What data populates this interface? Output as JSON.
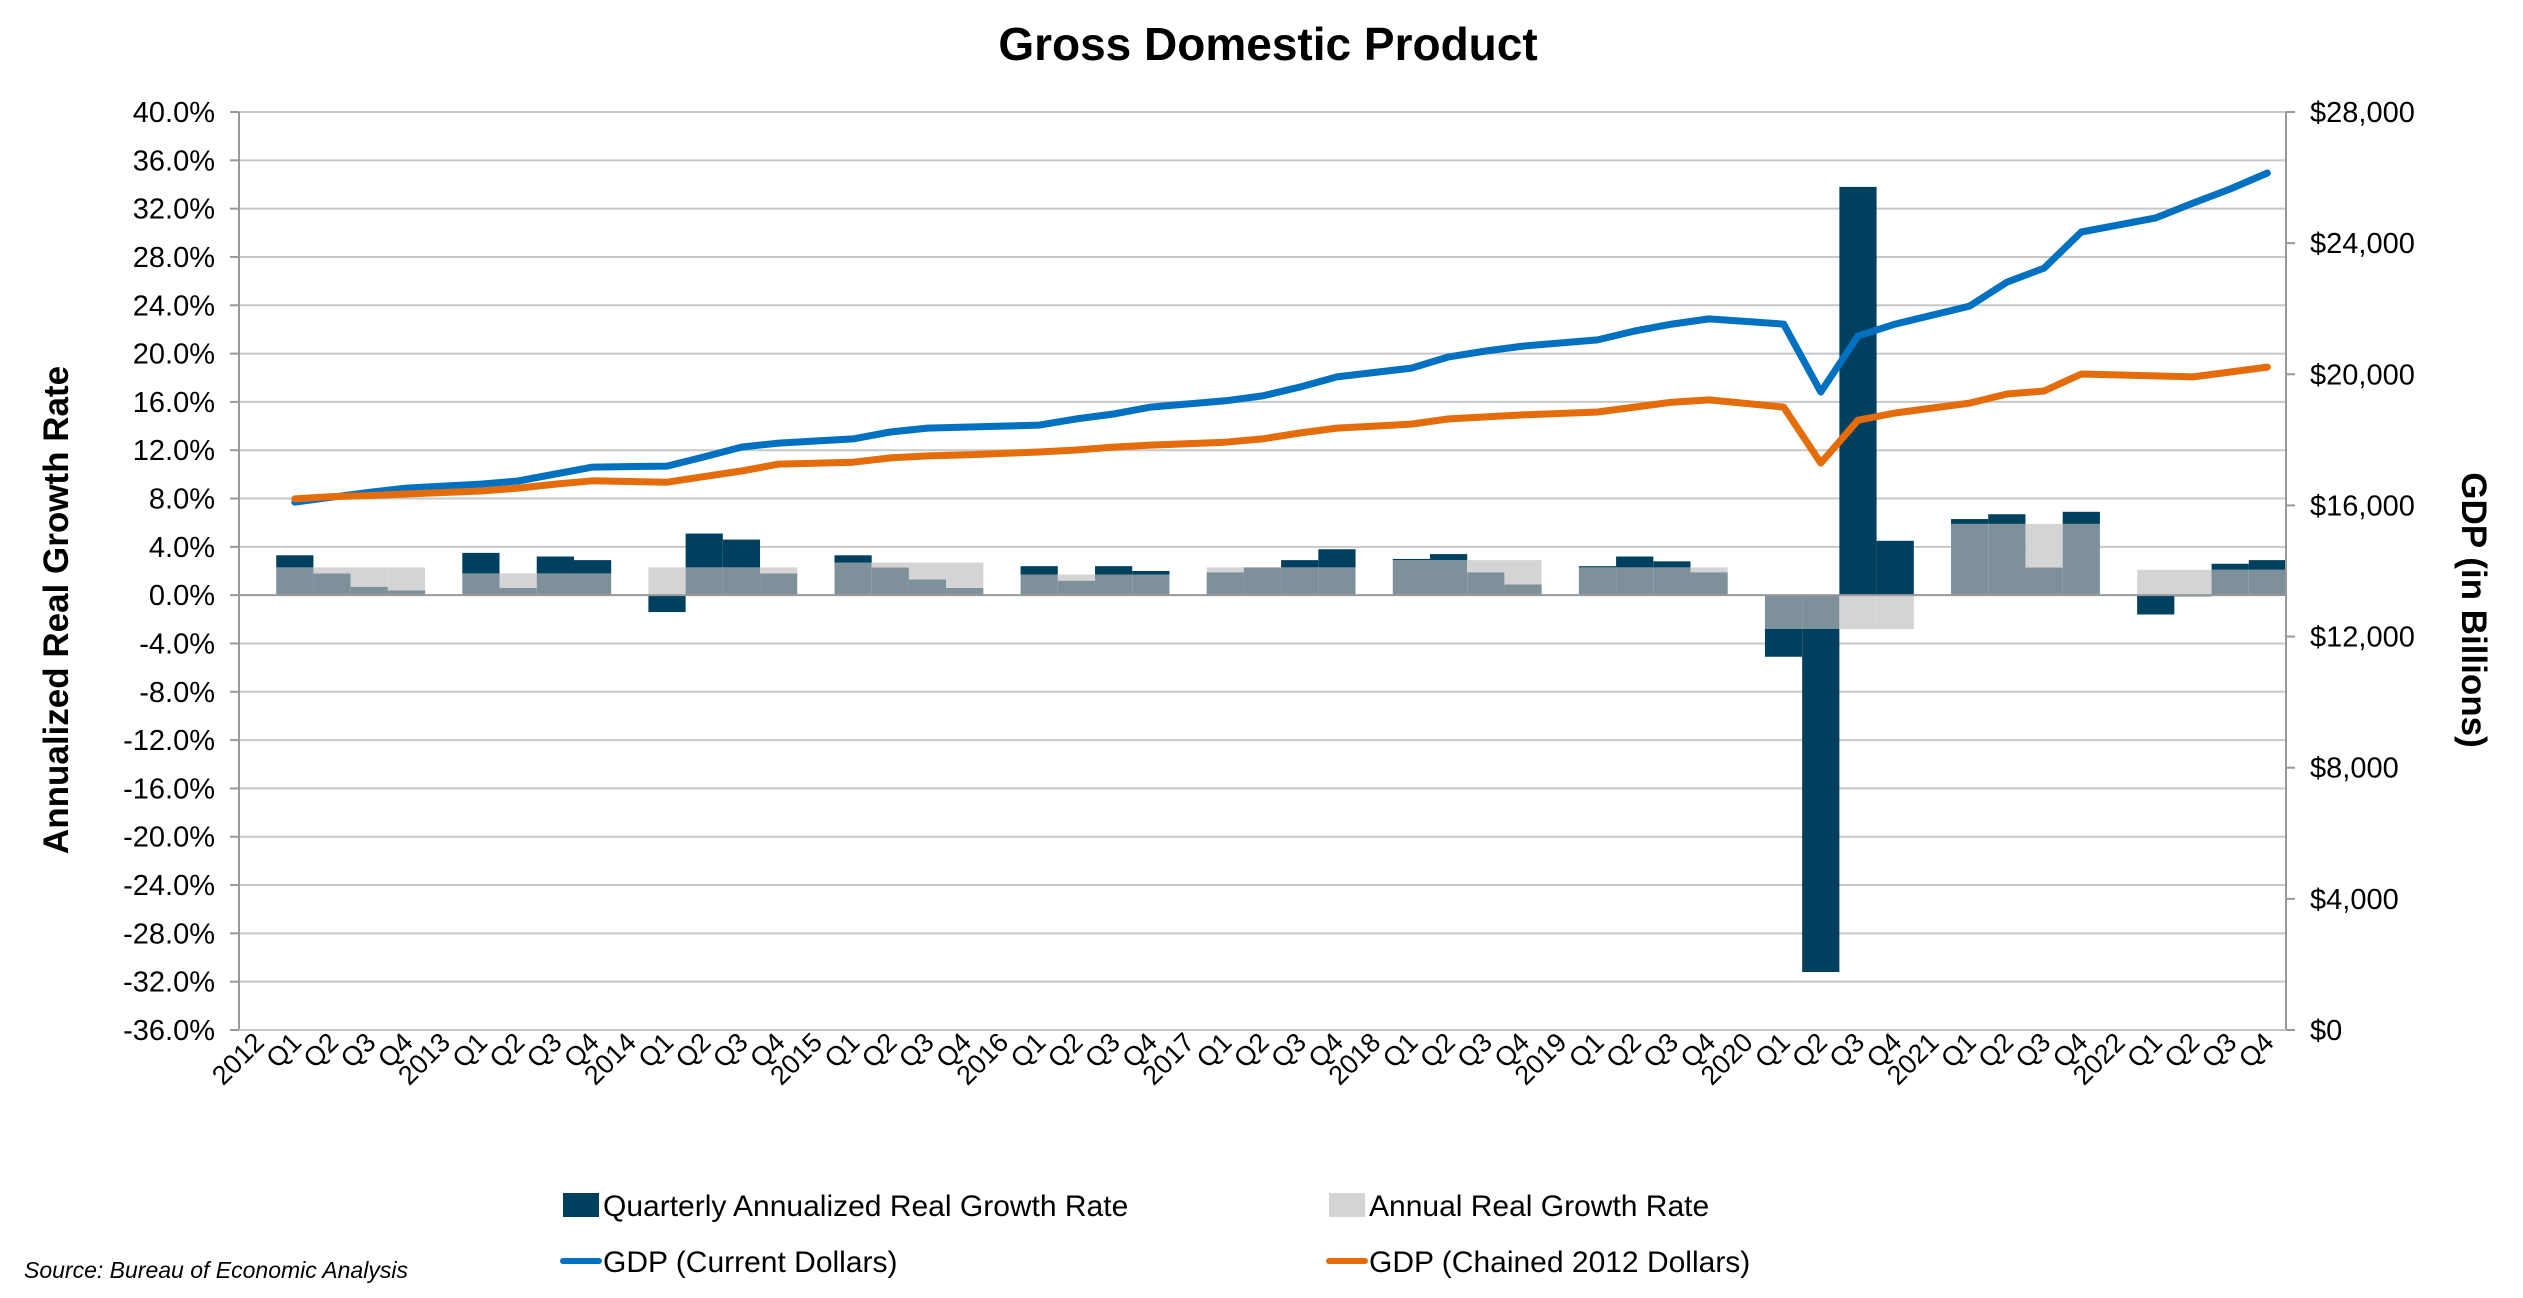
{
  "chart_data": {
    "type": "bar",
    "title": "Gross Domestic Product",
    "source": "Source: Bureau of Economic Analysis",
    "ylabel_left": "Annualized Real Growth Rate",
    "ylabel_right": "GDP (in Billions)",
    "xlabel": "",
    "grid": true,
    "legend_position": "bottom",
    "y_left": {
      "min": -36,
      "max": 40,
      "step": 4,
      "format": "percent_1dp",
      "ticks": [
        "40.0%",
        "36.0%",
        "32.0%",
        "28.0%",
        "24.0%",
        "20.0%",
        "16.0%",
        "12.0%",
        "8.0%",
        "4.0%",
        "0.0%",
        "-4.0%",
        "-8.0%",
        "-12.0%",
        "-16.0%",
        "-20.0%",
        "-24.0%",
        "-28.0%",
        "-32.0%",
        "-36.0%"
      ]
    },
    "y_right": {
      "min": 0,
      "max": 28000,
      "step": 4000,
      "ticks": [
        "$28,000",
        "$24,000",
        "$20,000",
        "$16,000",
        "$12,000",
        "$8,000",
        "$4,000",
        "$0"
      ]
    },
    "categories": [
      "2012",
      "Q1",
      "Q2",
      "Q3",
      "Q4",
      "2013",
      "Q1",
      "Q2",
      "Q3",
      "Q4",
      "2014",
      "Q1",
      "Q2",
      "Q3",
      "Q4",
      "2015",
      "Q1",
      "Q2",
      "Q3",
      "Q4",
      "2016",
      "Q1",
      "Q2",
      "Q3",
      "Q4",
      "2017",
      "Q1",
      "Q2",
      "Q3",
      "Q4",
      "2018",
      "Q1",
      "Q2",
      "Q3",
      "Q4",
      "2019",
      "Q1",
      "Q2",
      "Q3",
      "Q4",
      "2020",
      "Q1",
      "Q2",
      "Q3",
      "Q4",
      "2021",
      "Q1",
      "Q2",
      "Q3",
      "Q4",
      "2022",
      "Q1",
      "Q2",
      "Q3",
      "Q4"
    ],
    "series": [
      {
        "name": "Quarterly Annualized Real Growth Rate",
        "type": "bar",
        "axis": "left",
        "color": "#00405f",
        "values": [
          null,
          3.3,
          1.8,
          0.7,
          0.4,
          null,
          3.5,
          0.6,
          3.2,
          2.9,
          null,
          -1.4,
          5.1,
          4.6,
          1.8,
          null,
          3.3,
          2.3,
          1.3,
          0.6,
          null,
          2.4,
          1.2,
          2.4,
          2.0,
          null,
          1.9,
          2.3,
          2.9,
          3.8,
          null,
          3.0,
          3.4,
          1.9,
          0.9,
          null,
          2.4,
          3.2,
          2.8,
          1.9,
          null,
          -5.1,
          -31.2,
          33.8,
          4.5,
          null,
          6.3,
          6.7,
          2.3,
          6.9,
          null,
          -1.6,
          -0.1,
          2.6,
          2.9
        ]
      },
      {
        "name": "Annual Real Growth Rate",
        "type": "bar",
        "axis": "left",
        "color": "#d4d4d4",
        "values": [
          null,
          2.3,
          2.3,
          2.3,
          2.3,
          null,
          1.8,
          1.8,
          1.8,
          1.8,
          null,
          2.3,
          2.3,
          2.3,
          2.3,
          null,
          2.7,
          2.7,
          2.7,
          2.7,
          null,
          1.7,
          1.7,
          1.7,
          1.7,
          null,
          2.3,
          2.3,
          2.3,
          2.3,
          null,
          2.9,
          2.9,
          2.9,
          2.9,
          null,
          2.3,
          2.3,
          2.3,
          2.3,
          null,
          -2.8,
          -2.8,
          -2.8,
          -2.8,
          null,
          5.9,
          5.9,
          5.9,
          5.9,
          null,
          2.1,
          2.1,
          2.1,
          2.1
        ]
      },
      {
        "name": "GDP (Current Dollars)",
        "type": "line",
        "axis": "right",
        "color": "#0070c0",
        "values": [
          null,
          16100,
          16250,
          16400,
          16530,
          null,
          16650,
          16745,
          16960,
          17170,
          null,
          17200,
          17480,
          17780,
          17900,
          null,
          18030,
          18240,
          18360,
          18390,
          null,
          18450,
          18640,
          18790,
          19000,
          null,
          19190,
          19340,
          19610,
          19920,
          null,
          20190,
          20530,
          20710,
          20860,
          null,
          21050,
          21320,
          21530,
          21690,
          null,
          21530,
          19460,
          21170,
          21530,
          null,
          22080,
          22810,
          23240,
          24340,
          null,
          24770,
          25220,
          25650,
          26140
        ]
      },
      {
        "name": "GDP (Chained 2012 Dollars)",
        "type": "line",
        "axis": "right",
        "color": "#e46c0a",
        "values": [
          null,
          16200,
          16270,
          16300,
          16350,
          null,
          16440,
          16530,
          16650,
          16750,
          null,
          16710,
          16880,
          17050,
          17260,
          null,
          17320,
          17450,
          17510,
          17540,
          null,
          17630,
          17690,
          17780,
          17840,
          null,
          17930,
          18030,
          18210,
          18360,
          null,
          18480,
          18640,
          18700,
          18760,
          null,
          18850,
          19000,
          19150,
          19220,
          null,
          19000,
          17290,
          18600,
          18820,
          null,
          19120,
          19400,
          19490,
          20010,
          null,
          19950,
          19920,
          20070,
          20220
        ]
      }
    ],
    "overlap_color": "#7e919b",
    "legend": [
      {
        "label": "Quarterly Annualized Real Growth Rate",
        "kind": "box",
        "color": "#00405f"
      },
      {
        "label": "Annual Real Growth Rate",
        "kind": "box",
        "color": "#d4d4d4"
      },
      {
        "label": "GDP (Current Dollars)",
        "kind": "line",
        "color": "#0070c0"
      },
      {
        "label": "GDP (Chained 2012 Dollars)",
        "kind": "line",
        "color": "#e46c0a"
      }
    ]
  }
}
